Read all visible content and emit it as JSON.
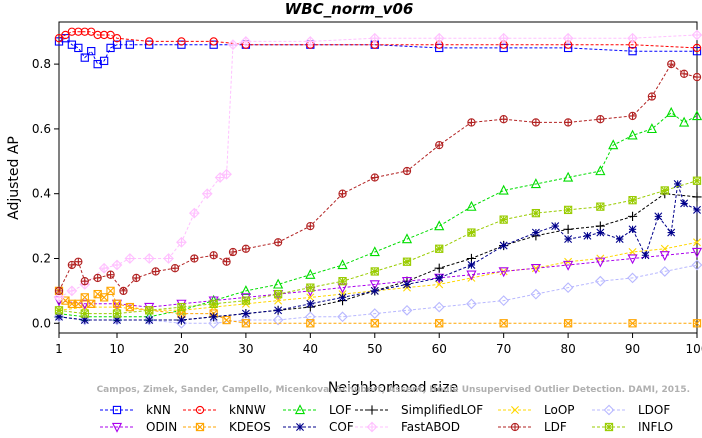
{
  "chart_data": {
    "type": "line",
    "title": "WBC_norm_v06",
    "xlabel": "Neighborhood size",
    "ylabel": "Adjusted AP",
    "xlim": [
      1,
      100
    ],
    "ylim": [
      -0.03,
      0.93
    ],
    "x_ticks": [
      1,
      10,
      20,
      30,
      40,
      50,
      60,
      70,
      80,
      90,
      100
    ],
    "y_ticks": [
      0.0,
      0.2,
      0.4,
      0.6,
      0.8
    ],
    "y_tick_labels": [
      "0.0",
      "0.2",
      "0.4",
      "0.6",
      "0.8"
    ],
    "grid": false,
    "legend_position": "bottom",
    "watermark": "Campos, Zimek, Sander, Campello, Micenkova, Schubert, Assent, Houle Unsupervised Outlier Detection. DAMI, 2015.",
    "series": [
      {
        "name": "kNN",
        "color": "#0000ff",
        "marker": "square",
        "x": [
          1,
          2,
          3,
          4,
          5,
          6,
          7,
          8,
          9,
          10,
          12,
          15,
          20,
          25,
          30,
          40,
          50,
          60,
          70,
          80,
          90,
          100
        ],
        "y": [
          0.87,
          0.88,
          0.86,
          0.85,
          0.82,
          0.84,
          0.8,
          0.81,
          0.85,
          0.86,
          0.86,
          0.86,
          0.86,
          0.86,
          0.86,
          0.86,
          0.86,
          0.85,
          0.85,
          0.85,
          0.84,
          0.84
        ]
      },
      {
        "name": "kNNW",
        "color": "#ff0000",
        "marker": "circle",
        "x": [
          1,
          2,
          3,
          4,
          5,
          6,
          7,
          8,
          9,
          10,
          15,
          20,
          25,
          30,
          40,
          50,
          60,
          70,
          80,
          90,
          100
        ],
        "y": [
          0.88,
          0.89,
          0.9,
          0.9,
          0.9,
          0.9,
          0.89,
          0.89,
          0.89,
          0.88,
          0.87,
          0.87,
          0.87,
          0.86,
          0.86,
          0.86,
          0.86,
          0.86,
          0.86,
          0.86,
          0.85
        ]
      },
      {
        "name": "LOF",
        "color": "#00dd00",
        "marker": "triangle",
        "x": [
          1,
          5,
          10,
          15,
          20,
          25,
          30,
          35,
          40,
          45,
          50,
          55,
          60,
          65,
          70,
          75,
          80,
          85,
          87,
          90,
          93,
          96,
          98,
          100
        ],
        "y": [
          0.03,
          0.02,
          0.02,
          0.02,
          0.04,
          0.07,
          0.1,
          0.12,
          0.15,
          0.18,
          0.22,
          0.26,
          0.3,
          0.36,
          0.41,
          0.43,
          0.45,
          0.47,
          0.55,
          0.58,
          0.6,
          0.65,
          0.62,
          0.64
        ]
      },
      {
        "name": "SimplifiedLOF",
        "color": "#000000",
        "marker": "plus",
        "x": [
          1,
          5,
          10,
          15,
          20,
          25,
          30,
          35,
          40,
          45,
          50,
          55,
          60,
          65,
          70,
          75,
          80,
          85,
          90,
          95,
          100
        ],
        "y": [
          0.02,
          0.01,
          0.01,
          0.01,
          0.01,
          0.02,
          0.03,
          0.04,
          0.05,
          0.07,
          0.1,
          0.13,
          0.17,
          0.2,
          0.24,
          0.27,
          0.29,
          0.3,
          0.33,
          0.4,
          0.39
        ]
      },
      {
        "name": "LoOP",
        "color": "#ffd700",
        "marker": "x",
        "x": [
          1,
          5,
          10,
          15,
          20,
          25,
          30,
          35,
          40,
          45,
          50,
          55,
          60,
          65,
          70,
          75,
          80,
          85,
          90,
          95,
          100
        ],
        "y": [
          0.04,
          0.05,
          0.05,
          0.04,
          0.04,
          0.05,
          0.06,
          0.07,
          0.08,
          0.09,
          0.1,
          0.11,
          0.12,
          0.14,
          0.16,
          0.17,
          0.19,
          0.2,
          0.22,
          0.23,
          0.25
        ]
      },
      {
        "name": "LDOF",
        "color": "#b8b8ff",
        "marker": "diamond",
        "x": [
          1,
          5,
          10,
          15,
          20,
          25,
          30,
          35,
          40,
          45,
          50,
          55,
          60,
          65,
          70,
          75,
          80,
          85,
          90,
          95,
          100
        ],
        "y": [
          0.02,
          0.01,
          0.01,
          0.01,
          0.0,
          0.0,
          0.01,
          0.01,
          0.02,
          0.02,
          0.03,
          0.04,
          0.05,
          0.06,
          0.07,
          0.09,
          0.11,
          0.13,
          0.14,
          0.16,
          0.18
        ]
      },
      {
        "name": "ODIN",
        "color": "#aa00ee",
        "marker": "triangle-down",
        "x": [
          1,
          5,
          10,
          15,
          20,
          25,
          30,
          35,
          40,
          45,
          50,
          55,
          60,
          65,
          70,
          75,
          80,
          85,
          90,
          95,
          100
        ],
        "y": [
          0.07,
          0.06,
          0.06,
          0.05,
          0.06,
          0.07,
          0.08,
          0.09,
          0.1,
          0.11,
          0.12,
          0.13,
          0.14,
          0.15,
          0.16,
          0.17,
          0.18,
          0.19,
          0.2,
          0.21,
          0.22
        ]
      },
      {
        "name": "KDEOS",
        "color": "#ffa500",
        "marker": "square-x",
        "x": [
          1,
          2,
          3,
          4,
          5,
          6,
          7,
          8,
          9,
          10,
          12,
          15,
          20,
          25,
          27,
          30,
          40,
          50,
          60,
          70,
          80,
          90,
          100
        ],
        "y": [
          0.1,
          0.07,
          0.06,
          0.06,
          0.08,
          0.06,
          0.09,
          0.08,
          0.1,
          0.06,
          0.05,
          0.04,
          0.03,
          0.03,
          0.01,
          0.0,
          0.0,
          0.0,
          0.0,
          0.0,
          0.0,
          0.0,
          0.0
        ]
      },
      {
        "name": "COF",
        "color": "#00008b",
        "marker": "asterisk",
        "x": [
          1,
          5,
          10,
          15,
          20,
          25,
          30,
          35,
          40,
          45,
          50,
          55,
          60,
          65,
          70,
          75,
          78,
          80,
          83,
          85,
          88,
          90,
          92,
          94,
          96,
          97,
          98,
          100
        ],
        "y": [
          0.02,
          0.01,
          0.01,
          0.01,
          0.01,
          0.02,
          0.03,
          0.04,
          0.06,
          0.08,
          0.1,
          0.12,
          0.14,
          0.18,
          0.24,
          0.28,
          0.3,
          0.26,
          0.27,
          0.28,
          0.26,
          0.29,
          0.21,
          0.33,
          0.28,
          0.43,
          0.37,
          0.35
        ]
      },
      {
        "name": "FastABOD",
        "color": "#ffc0ff",
        "marker": "diamond-plus",
        "x": [
          1,
          3,
          5,
          8,
          10,
          12,
          15,
          18,
          20,
          22,
          24,
          26,
          27,
          28,
          30,
          40,
          50,
          60,
          70,
          80,
          90,
          100
        ],
        "y": [
          0.08,
          0.1,
          0.12,
          0.17,
          0.18,
          0.2,
          0.2,
          0.2,
          0.25,
          0.34,
          0.4,
          0.45,
          0.46,
          0.86,
          0.87,
          0.87,
          0.88,
          0.88,
          0.88,
          0.88,
          0.88,
          0.89
        ]
      },
      {
        "name": "LDF",
        "color": "#b22222",
        "marker": "circle-plus",
        "x": [
          1,
          3,
          4,
          5,
          7,
          9,
          11,
          13,
          16,
          19,
          22,
          25,
          27,
          28,
          30,
          35,
          40,
          45,
          50,
          55,
          60,
          65,
          70,
          75,
          80,
          85,
          90,
          93,
          96,
          98,
          100
        ],
        "y": [
          0.1,
          0.18,
          0.19,
          0.13,
          0.14,
          0.15,
          0.1,
          0.14,
          0.16,
          0.17,
          0.2,
          0.21,
          0.19,
          0.22,
          0.23,
          0.25,
          0.3,
          0.4,
          0.45,
          0.47,
          0.55,
          0.62,
          0.63,
          0.62,
          0.62,
          0.63,
          0.64,
          0.7,
          0.8,
          0.77,
          0.76
        ]
      },
      {
        "name": "INFLO",
        "color": "#99cc00",
        "marker": "square-star",
        "x": [
          1,
          5,
          10,
          15,
          20,
          25,
          30,
          35,
          40,
          45,
          50,
          55,
          60,
          65,
          70,
          75,
          80,
          85,
          90,
          95,
          100
        ],
        "y": [
          0.04,
          0.03,
          0.03,
          0.04,
          0.05,
          0.06,
          0.07,
          0.09,
          0.11,
          0.13,
          0.16,
          0.19,
          0.23,
          0.28,
          0.32,
          0.34,
          0.35,
          0.36,
          0.38,
          0.41,
          0.44
        ]
      }
    ]
  }
}
